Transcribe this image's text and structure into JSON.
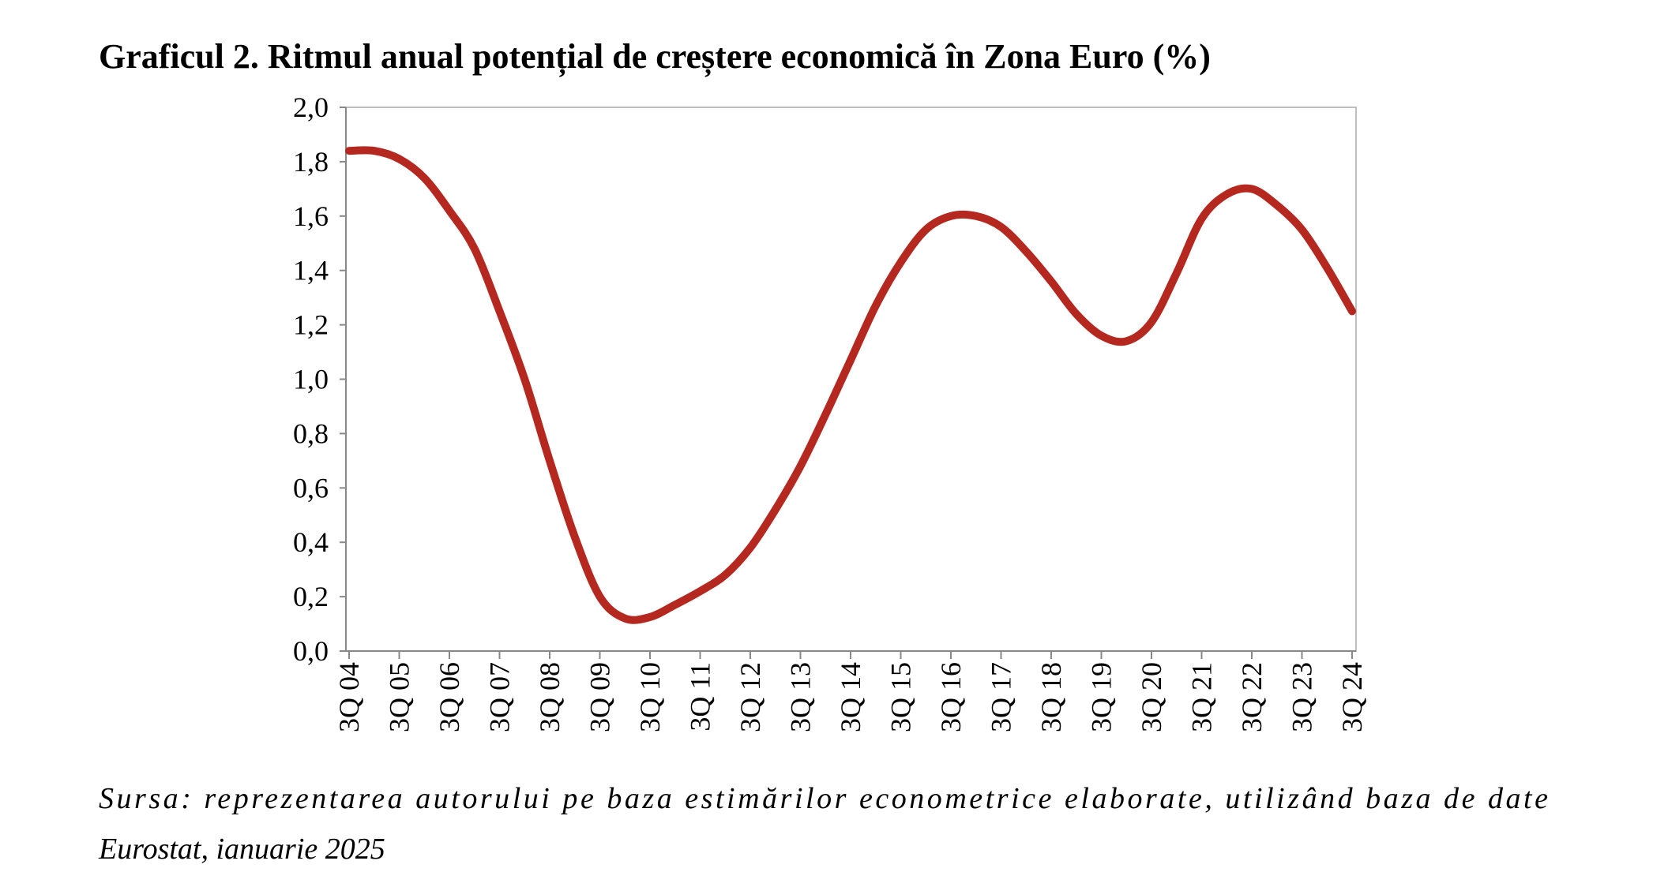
{
  "chart_data": {
    "type": "line",
    "title": "Graficul 2. Ritmul anual potențial de creștere economică în Zona Euro (%)",
    "source_lines": [
      "Sursa: reprezentarea autorului pe baza estimărilor econometrice elaborate, utilizând baza de date",
      "Eurostat, ianuarie 2025"
    ],
    "categories": [
      "3Q 04",
      null,
      "3Q 05",
      null,
      "3Q 06",
      null,
      "3Q 07",
      null,
      "3Q 08",
      null,
      "3Q 09",
      null,
      "3Q 10",
      null,
      "3Q 11",
      null,
      "3Q 12",
      null,
      "3Q 13",
      null,
      "3Q 14",
      null,
      "3Q 15",
      null,
      "3Q 16",
      null,
      "3Q 17",
      null,
      "3Q 18",
      null,
      "3Q 19",
      null,
      "3Q 20",
      null,
      "3Q 21",
      null,
      "3Q 22",
      null,
      "3Q 23",
      null,
      "3Q 24"
    ],
    "series": [
      {
        "name": "Ritmul anual potențial",
        "color": "#b5281f",
        "values": [
          1.84,
          1.84,
          1.81,
          1.74,
          1.62,
          1.48,
          1.25,
          1.0,
          0.7,
          0.42,
          0.2,
          0.12,
          0.125,
          0.17,
          0.22,
          0.28,
          0.38,
          0.52,
          0.68,
          0.87,
          1.07,
          1.27,
          1.43,
          1.55,
          1.6,
          1.6,
          1.56,
          1.47,
          1.36,
          1.24,
          1.16,
          1.14,
          1.21,
          1.39,
          1.59,
          1.68,
          1.7,
          1.64,
          1.55,
          1.41,
          1.25
        ]
      }
    ],
    "ylim": [
      0,
      2
    ],
    "yticks": [
      {
        "value": 0,
        "label": "0,0"
      },
      {
        "value": 0.2,
        "label": "0,2"
      },
      {
        "value": 0.4,
        "label": "0,4"
      },
      {
        "value": 0.6,
        "label": "0,6"
      },
      {
        "value": 0.8,
        "label": "0,8"
      },
      {
        "value": 1,
        "label": "1,0"
      },
      {
        "value": 1.2,
        "label": "1,2"
      },
      {
        "value": 1.4,
        "label": "1,4"
      },
      {
        "value": 1.6,
        "label": "1,6"
      },
      {
        "value": 1.8,
        "label": "1,8"
      },
      {
        "value": 2,
        "label": "2,0"
      }
    ],
    "grid": false
  }
}
